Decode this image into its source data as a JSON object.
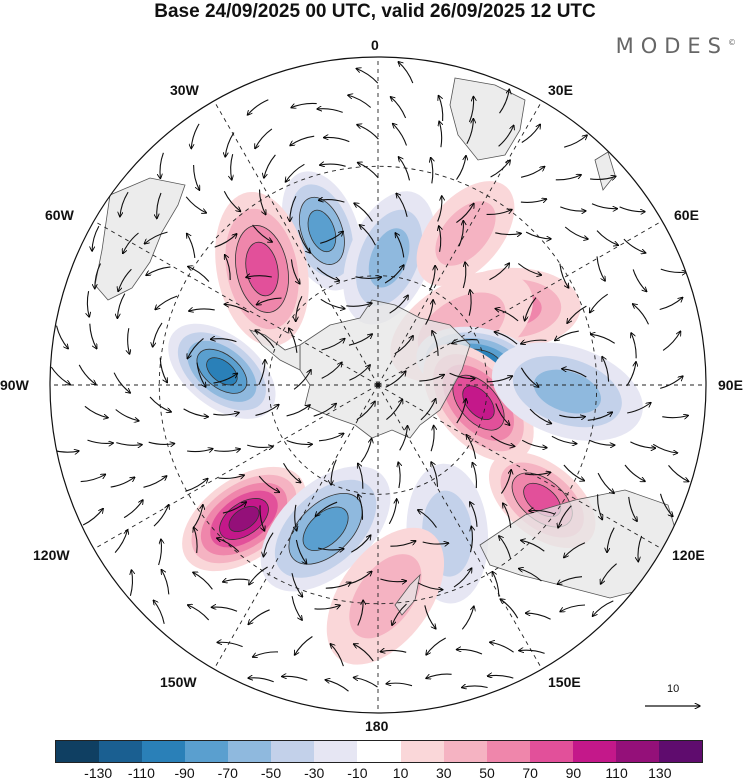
{
  "title": "Base 24/09/2025 00 UTC, valid 26/09/2025 12 UTC",
  "brand": "MODES",
  "brand_mark": "©",
  "longitude_labels": {
    "top": "0",
    "top_right": "30E",
    "right_upper": "60E",
    "right": "90E",
    "right_lower": "120E",
    "bottom_right": "150E",
    "bottom": "180",
    "bottom_left": "150W",
    "left_lower": "120W",
    "left": "90W",
    "left_upper": "60W",
    "top_left": "30W"
  },
  "vector_scale_label": "10",
  "colorbar": {
    "colors": [
      "#0f3f62",
      "#1a5f91",
      "#2a80b8",
      "#5a9fcf",
      "#8fb9de",
      "#c3d1ea",
      "#e6e6f3",
      "#ffffff",
      "#fad7d9",
      "#f5b3c2",
      "#ef86ab",
      "#e2509a",
      "#c4188a",
      "#941079",
      "#5f0c6e"
    ],
    "ticks": [
      "-130",
      "-110",
      "-90",
      "-70",
      "-50",
      "-30",
      "-10",
      "10",
      "30",
      "50",
      "70",
      "90",
      "110",
      "130"
    ]
  },
  "anomaly_centers": [
    {
      "sign": "negative",
      "strength": -70,
      "lon": -20,
      "lat": -45
    },
    {
      "sign": "negative",
      "strength": -50,
      "lon": 5,
      "lat": -55
    },
    {
      "sign": "positive",
      "strength": 70,
      "lon": -45,
      "lat": -45
    },
    {
      "sign": "positive",
      "strength": 30,
      "lon": 30,
      "lat": -42
    },
    {
      "sign": "positive",
      "strength": 50,
      "lon": 60,
      "lat": -48
    },
    {
      "sign": "positive",
      "strength": 30,
      "lon": 55,
      "lat": -62
    },
    {
      "sign": "negative",
      "strength": -110,
      "lon": 78,
      "lat": -62
    },
    {
      "sign": "positive",
      "strength": 90,
      "lon": 100,
      "lat": -62
    },
    {
      "sign": "negative",
      "strength": -50,
      "lon": 92,
      "lat": -38
    },
    {
      "sign": "negative",
      "strength": -90,
      "lon": -85,
      "lat": -47
    },
    {
      "sign": "positive",
      "strength": 110,
      "lon": -135,
      "lat": -38
    },
    {
      "sign": "negative",
      "strength": -70,
      "lon": -160,
      "lat": -48
    },
    {
      "sign": "positive",
      "strength": 70,
      "lon": 125,
      "lat": -35
    },
    {
      "sign": "negative",
      "strength": -30,
      "lon": 155,
      "lat": -45
    },
    {
      "sign": "positive",
      "strength": 30,
      "lon": 178,
      "lat": -32
    }
  ]
}
